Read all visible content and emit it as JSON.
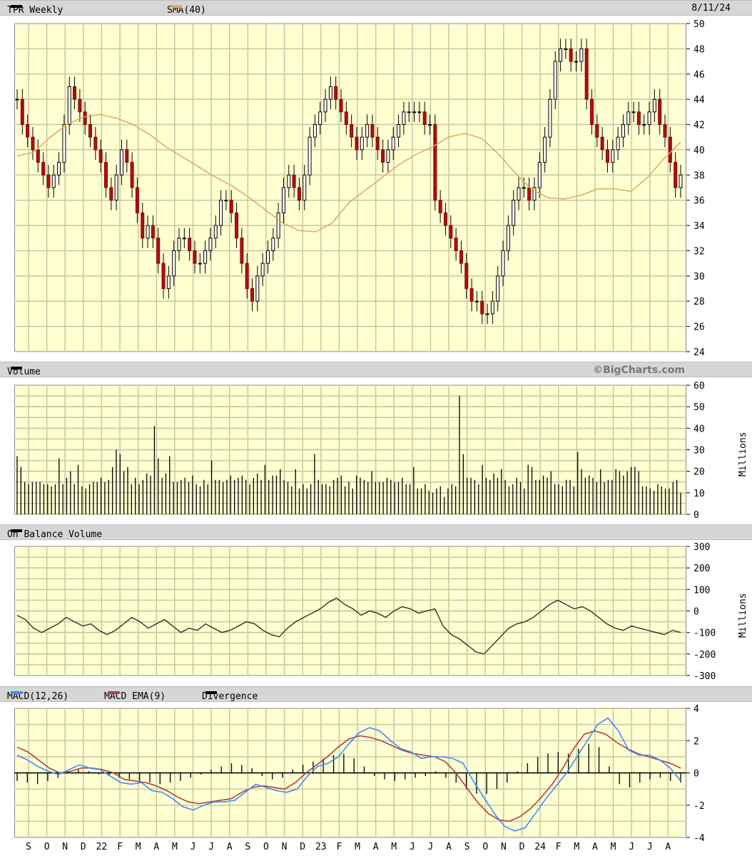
{
  "header": {
    "ticker_label": "TPR Weekly",
    "sma_label": "SMA(40)",
    "date": "8/11/24",
    "ticker_color": "#000000",
    "sma_color": "#e0a860"
  },
  "volume_header": {
    "label": "Volume",
    "brand": "©BigCharts.com",
    "unit": "Millions"
  },
  "obv_header": {
    "label": "On Balance Volume",
    "unit": "Millions"
  },
  "macd_header": {
    "macd_label": "MACD(12,26)",
    "ema_label": "MACD EMA(9)",
    "div_label": "Divergence",
    "macd_color": "#3c8cff",
    "ema_color": "#b04040",
    "div_color": "#000000"
  },
  "x_axis_labels": [
    "S",
    "O",
    "N",
    "D",
    "22",
    "F",
    "M",
    "A",
    "M",
    "J",
    "J",
    "A",
    "S",
    "O",
    "N",
    "D",
    "23",
    "F",
    "M",
    "A",
    "M",
    "J",
    "J",
    "A",
    "S",
    "O",
    "N",
    "D",
    "24",
    "F",
    "M",
    "A",
    "M",
    "J",
    "J",
    "A"
  ],
  "chart_data": [
    {
      "type": "candlestick",
      "title": "TPR Weekly",
      "ylim": [
        24,
        50
      ],
      "yticks": [
        24,
        26,
        28,
        30,
        32,
        34,
        36,
        38,
        40,
        42,
        44,
        46,
        48,
        50
      ],
      "series": [
        {
          "name": "TPR Weekly",
          "values_close": [
            44,
            42,
            41,
            40,
            39,
            38,
            37,
            38,
            39,
            42,
            45,
            44,
            43,
            42,
            41,
            40,
            39,
            37,
            36,
            38,
            40,
            39,
            37,
            35,
            33,
            34,
            33,
            31,
            29,
            30,
            32,
            33,
            33,
            32,
            31,
            31,
            32,
            33,
            34,
            36,
            36,
            35,
            33,
            31,
            29,
            28,
            30,
            31,
            32,
            33,
            35,
            37,
            38,
            37,
            36,
            38,
            41,
            42,
            43,
            44,
            45,
            44,
            43,
            42,
            41,
            40,
            41,
            42,
            41,
            40,
            39,
            40,
            41,
            42,
            43,
            43,
            43,
            43,
            42,
            42,
            36,
            35,
            34,
            33,
            32,
            31,
            29,
            28,
            28,
            27,
            27,
            28,
            30,
            32,
            34,
            36,
            37,
            37,
            36,
            37,
            39,
            41,
            44,
            47,
            48,
            48,
            47,
            47,
            48,
            44,
            42,
            41,
            40,
            39,
            40,
            41,
            42,
            43,
            43,
            42,
            42,
            43,
            44,
            42,
            41,
            39,
            37,
            38
          ]
        },
        {
          "name": "SMA(40)",
          "values": [
            39.5,
            39.8,
            41,
            42,
            42.6,
            42.8,
            42.5,
            42,
            41.2,
            40.2,
            39.4,
            38.6,
            37.8,
            37.1,
            36.2,
            35.2,
            34.2,
            33.6,
            33.5,
            34.2,
            35.8,
            36.8,
            37.8,
            38.8,
            39.6,
            40.2,
            41,
            41.3,
            40.9,
            39.7,
            38.2,
            36.9,
            36.2,
            36.1,
            36.4,
            36.9,
            36.9,
            36.7,
            37.8,
            39.3,
            40.6
          ]
        }
      ]
    },
    {
      "type": "bar",
      "title": "Volume",
      "ylabel": "Millions",
      "ylim": [
        0,
        60
      ],
      "yticks": [
        0,
        10,
        20,
        30,
        40,
        50,
        60
      ],
      "values": [
        27,
        22,
        15,
        14,
        15,
        15,
        15,
        14,
        14,
        13,
        14,
        26,
        14,
        17,
        20,
        14,
        23,
        13,
        12,
        14,
        15,
        15,
        17,
        15,
        16,
        22,
        30,
        28,
        20,
        22,
        14,
        17,
        14,
        16,
        19,
        18,
        41,
        26,
        17,
        19,
        27,
        15,
        15,
        16,
        17,
        15,
        18,
        14,
        13,
        16,
        14,
        25,
        16,
        16,
        15,
        16,
        18,
        16,
        17,
        18,
        16,
        14,
        17,
        19,
        16,
        23,
        16,
        18,
        18,
        21,
        16,
        15,
        13,
        21,
        12,
        14,
        12,
        14,
        28,
        16,
        14,
        14,
        13,
        16,
        17,
        18,
        13,
        15,
        12,
        18,
        17,
        16,
        15,
        20,
        15,
        15,
        15,
        17,
        16,
        15,
        15,
        17,
        14,
        14,
        22,
        12,
        12,
        14,
        11,
        10,
        12,
        13,
        8,
        12,
        14,
        13,
        55,
        28,
        17,
        17,
        16,
        14,
        23,
        17,
        16,
        19,
        17,
        21,
        16,
        13,
        14,
        17,
        15,
        12,
        23,
        22,
        16,
        16,
        18,
        17,
        20,
        14,
        14,
        13,
        16,
        16,
        13,
        29,
        21,
        17,
        18,
        17,
        15,
        21,
        15,
        16,
        16,
        21,
        20,
        18,
        20,
        22,
        22,
        20,
        13,
        13,
        12,
        11,
        14,
        13,
        12,
        12,
        15,
        16,
        10
      ]
    },
    {
      "type": "line",
      "title": "On Balance Volume",
      "ylabel": "Millions",
      "ylim": [
        -300,
        300
      ],
      "yticks": [
        -300,
        -200,
        -100,
        0,
        100,
        200,
        300
      ],
      "values": [
        -20,
        -40,
        -80,
        -100,
        -80,
        -60,
        -30,
        -50,
        -70,
        -60,
        -90,
        -110,
        -90,
        -60,
        -30,
        -50,
        -80,
        -60,
        -40,
        -70,
        -100,
        -80,
        -90,
        -60,
        -80,
        -100,
        -90,
        -70,
        -50,
        -60,
        -90,
        -110,
        -120,
        -80,
        -50,
        -30,
        -10,
        10,
        40,
        60,
        30,
        10,
        -20,
        0,
        -10,
        -30,
        0,
        20,
        10,
        -10,
        0,
        10,
        -70,
        -110,
        -130,
        -160,
        -190,
        -200,
        -160,
        -120,
        -80,
        -60,
        -50,
        -30,
        0,
        30,
        50,
        30,
        10,
        20,
        0,
        -30,
        -60,
        -80,
        -90,
        -70,
        -80,
        -90,
        -100,
        -110,
        -90,
        -100
      ]
    },
    {
      "type": "line",
      "title": "MACD(12,26)",
      "ylim": [
        -4,
        4
      ],
      "yticks": [
        -4,
        -2,
        0,
        2,
        4
      ],
      "series": [
        {
          "name": "MACD(12,26)",
          "values": [
            1.1,
            0.8,
            0.4,
            0.1,
            -0.1,
            0.2,
            0.5,
            0.3,
            0.2,
            -0.2,
            -0.6,
            -0.7,
            -0.6,
            -1.1,
            -1.2,
            -1.6,
            -2.1,
            -2.3,
            -2,
            -1.8,
            -1.8,
            -1.7,
            -1.2,
            -0.7,
            -0.9,
            -1.1,
            -1.2,
            -1,
            -0.2,
            0.4,
            0.6,
            1,
            1.8,
            2.5,
            2.8,
            2.6,
            2,
            1.5,
            1.3,
            0.9,
            1,
            1,
            0.9,
            0.6,
            -0.5,
            -1.5,
            -2.5,
            -3.3,
            -3.6,
            -3.4,
            -2.5,
            -1.6,
            -0.8,
            0,
            1,
            2,
            3,
            3.4,
            2.6,
            1.4,
            1.1,
            1.1,
            0.8,
            0.3,
            -0.5
          ]
        },
        {
          "name": "MACD EMA(9)",
          "values": [
            1.6,
            1.3,
            0.8,
            0.3,
            0,
            0.1,
            0.3,
            0.3,
            0.2,
            0,
            -0.4,
            -0.5,
            -0.6,
            -0.8,
            -1.1,
            -1.5,
            -1.8,
            -1.9,
            -1.8,
            -1.7,
            -1.6,
            -1.2,
            -0.9,
            -0.8,
            -0.9,
            -1,
            -0.6,
            0,
            0.5,
            1,
            1.6,
            2.1,
            2.3,
            2.2,
            2,
            1.7,
            1.4,
            1.2,
            1.1,
            1,
            0.7,
            0,
            -0.9,
            -1.8,
            -2.5,
            -2.9,
            -3,
            -2.7,
            -2.2,
            -1.5,
            -0.7,
            0.3,
            1.5,
            2.4,
            2.6,
            2.4,
            1.9,
            1.5,
            1.2,
            1,
            0.8,
            0.6,
            0.3
          ]
        },
        {
          "name": "Divergence",
          "values": [
            -0.5,
            -0.6,
            -0.7,
            -0.5,
            -0.3,
            0.1,
            0.2,
            0.1,
            -0.1,
            -0.2,
            -0.3,
            -0.4,
            -0.5,
            -0.6,
            -0.7,
            -0.6,
            -0.5,
            -0.3,
            -0.1,
            0.2,
            0.4,
            0.6,
            0.5,
            0.3,
            -0.2,
            -0.4,
            -0.3,
            0.2,
            0.5,
            0.7,
            0.9,
            1.1,
            1.2,
            0.9,
            0.4,
            -0.2,
            -0.4,
            -0.5,
            -0.4,
            -0.3,
            -0.2,
            0.1,
            -0.3,
            -0.6,
            -1,
            -1.3,
            -1.3,
            -1,
            -0.6,
            0.1,
            0.6,
            1,
            1.2,
            1.3,
            1.2,
            1.5,
            1.8,
            1.6,
            0.4,
            -0.7,
            -0.9,
            -0.6,
            -0.4,
            -0.3,
            -0.5,
            -0.6
          ]
        }
      ]
    }
  ]
}
